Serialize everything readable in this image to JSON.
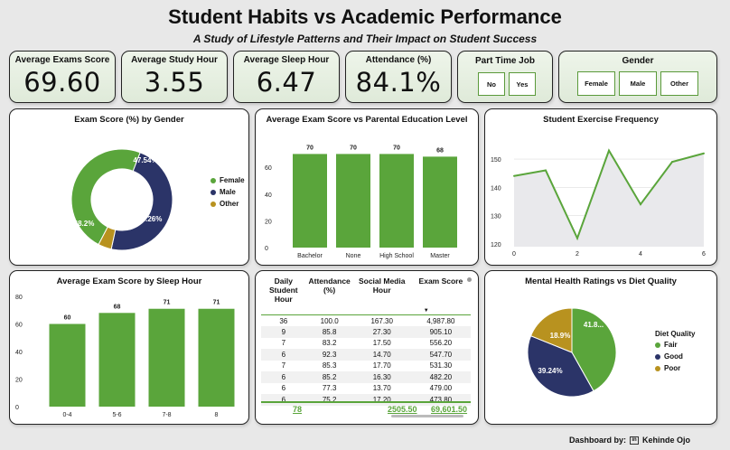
{
  "header": {
    "title": "Student Habits vs Academic Performance",
    "subtitle": "A Study of Lifestyle Patterns and Their Impact on Student Success"
  },
  "kpis": [
    {
      "label": "Average Exams Score",
      "value": "69.60"
    },
    {
      "label": "Average Study Hour",
      "value": "3.55"
    },
    {
      "label": "Average Sleep Hour",
      "value": "6.47"
    },
    {
      "label": "Attendance (%)",
      "value": "84.1%"
    }
  ],
  "slicers": {
    "part_time": {
      "title": "Part Time Job",
      "options": [
        "No",
        "Yes"
      ]
    },
    "gender": {
      "title": "Gender",
      "options": [
        "Female",
        "Male",
        "Other"
      ]
    }
  },
  "colors": {
    "green": "#5aa53b",
    "navy": "#2b3468",
    "gold": "#b8921f"
  },
  "chart_data": [
    {
      "type": "pie",
      "title": "Exam Score (%) by Gender",
      "labels": [
        "Female",
        "Male",
        "Other"
      ],
      "values": [
        48.2,
        47.54,
        4.26
      ],
      "data_labels": [
        "48.2%",
        "47.54%",
        "4.26%"
      ],
      "donut": true,
      "legend": "right"
    },
    {
      "type": "bar",
      "title": "Average Exam Score vs Parental Education Level",
      "categories": [
        "Bachelor",
        "None",
        "High School",
        "Master"
      ],
      "values": [
        70,
        70,
        70,
        68
      ],
      "yticks": [
        "0",
        "20",
        "40",
        "60"
      ],
      "ylim": [
        0,
        75
      ]
    },
    {
      "type": "area",
      "title": "Student Exercise Frequency",
      "x": [
        0,
        1,
        2,
        3,
        4,
        5,
        6
      ],
      "values": [
        144,
        146,
        122,
        153,
        134,
        149,
        152
      ],
      "xticks": [
        "0",
        "2",
        "4",
        "6"
      ],
      "yticks": [
        "120",
        "130",
        "140",
        "150"
      ],
      "ylim": [
        119,
        158
      ],
      "grid": true
    },
    {
      "type": "bar",
      "title": "Average Exam Score by Sleep Hour",
      "categories": [
        "0-4",
        "5-6",
        "7-8",
        "8"
      ],
      "values": [
        60,
        68,
        71,
        71
      ],
      "yticks": [
        "0",
        "20",
        "40",
        "60",
        "80"
      ],
      "ylim": [
        0,
        80
      ]
    },
    {
      "type": "table",
      "columns": [
        "Daily Student Hour",
        "Attendance (%)",
        "Social Media Hour",
        "Exam Score"
      ],
      "rows": [
        [
          "36",
          "100.0",
          "167.30",
          "4,987.80"
        ],
        [
          "9",
          "85.8",
          "27.30",
          "905.10"
        ],
        [
          "7",
          "83.2",
          "17.50",
          "556.20"
        ],
        [
          "6",
          "92.3",
          "14.70",
          "547.70"
        ],
        [
          "7",
          "85.3",
          "17.70",
          "531.30"
        ],
        [
          "6",
          "85.2",
          "16.30",
          "482.20"
        ],
        [
          "6",
          "77.3",
          "13.70",
          "479.00"
        ],
        [
          "6",
          "75.2",
          "17.20",
          "473.80"
        ]
      ],
      "totals": [
        "78",
        "",
        "2505.50",
        "69,601.50"
      ]
    },
    {
      "type": "pie",
      "title": "Mental Health Ratings vs Diet Quality",
      "labels": [
        "Fair",
        "Good",
        "Poor"
      ],
      "values": [
        41.86,
        39.24,
        18.9
      ],
      "data_labels": [
        "41.8...",
        "39.24%",
        "18.9%"
      ],
      "legend_title": "Diet Quality",
      "legend": "right"
    }
  ],
  "footer": {
    "credit_label": "Dashboard by:",
    "author": "Kehinde Ojo"
  }
}
